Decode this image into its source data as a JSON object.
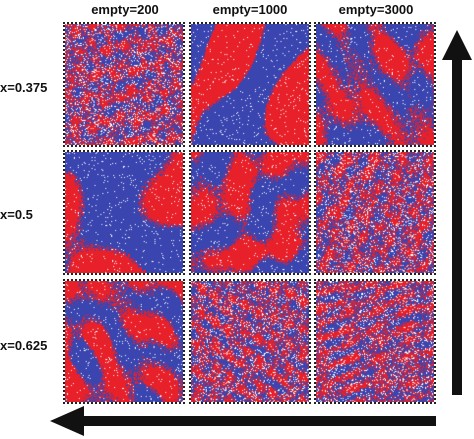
{
  "columns": [
    "empty=200",
    "empty=1000",
    "empty=3000"
  ],
  "rows": [
    "x=0.375",
    "x=0.5",
    "x=0.625"
  ],
  "colors": {
    "red": "#e8202a",
    "blue": "#3a45b0",
    "white": "#ffffff"
  },
  "arrows": [
    {
      "name": "upward-arrow",
      "direction": "up"
    },
    {
      "name": "leftward-arrow",
      "direction": "left"
    }
  ],
  "panels": [
    {
      "row": 0,
      "col": 0,
      "pattern": "fine-mixed"
    },
    {
      "row": 0,
      "col": 1,
      "pattern": "large-domains"
    },
    {
      "row": 0,
      "col": 2,
      "pattern": "medium-domains"
    },
    {
      "row": 1,
      "col": 0,
      "pattern": "large-domains"
    },
    {
      "row": 1,
      "col": 1,
      "pattern": "medium-domains"
    },
    {
      "row": 1,
      "col": 2,
      "pattern": "fine-mixed"
    },
    {
      "row": 2,
      "col": 0,
      "pattern": "medium-domains"
    },
    {
      "row": 2,
      "col": 1,
      "pattern": "fine-mixed"
    },
    {
      "row": 2,
      "col": 2,
      "pattern": "fine-mixed"
    }
  ]
}
